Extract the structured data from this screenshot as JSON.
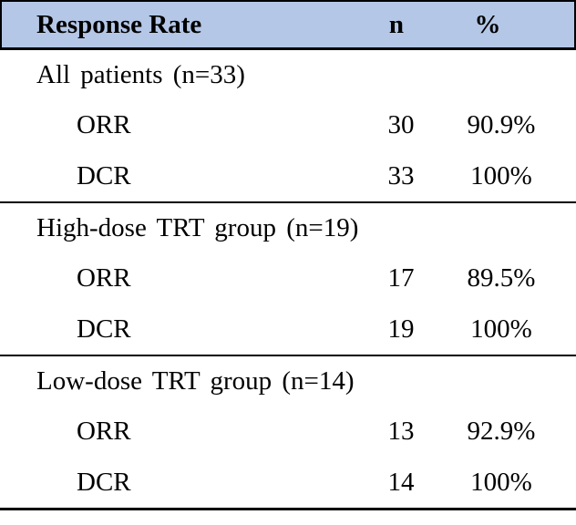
{
  "table": {
    "header": {
      "response_rate": "Response Rate",
      "n": "n",
      "pct": "%"
    },
    "colors": {
      "header_bg": "#b4c7e7",
      "border": "#000000",
      "text": "#000000"
    },
    "sections": [
      {
        "label": "All patients (n=33)",
        "rows": [
          {
            "name": "ORR",
            "n": "30",
            "pct": "90.9%"
          },
          {
            "name": "DCR",
            "n": "33",
            "pct": "100%"
          }
        ]
      },
      {
        "label": "High-dose TRT group (n=19)",
        "rows": [
          {
            "name": "ORR",
            "n": "17",
            "pct": "89.5%"
          },
          {
            "name": "DCR",
            "n": "19",
            "pct": "100%"
          }
        ]
      },
      {
        "label": "Low-dose TRT group (n=14)",
        "rows": [
          {
            "name": "ORR",
            "n": "13",
            "pct": "92.9%"
          },
          {
            "name": "DCR",
            "n": "14",
            "pct": "100%"
          }
        ]
      }
    ]
  },
  "chart_data": {
    "type": "table",
    "title": "Response Rate",
    "columns": [
      "Response Rate",
      "n",
      "%"
    ],
    "rows": [
      [
        "All patients (n=33)",
        "",
        ""
      ],
      [
        "ORR",
        "30",
        "90.9%"
      ],
      [
        "DCR",
        "33",
        "100%"
      ],
      [
        "High-dose TRT group (n=19)",
        "",
        ""
      ],
      [
        "ORR",
        "17",
        "89.5%"
      ],
      [
        "DCR",
        "19",
        "100%"
      ],
      [
        "Low-dose TRT group (n=14)",
        "",
        ""
      ],
      [
        "ORR",
        "13",
        "92.9%"
      ],
      [
        "DCR",
        "14",
        "100%"
      ]
    ]
  }
}
